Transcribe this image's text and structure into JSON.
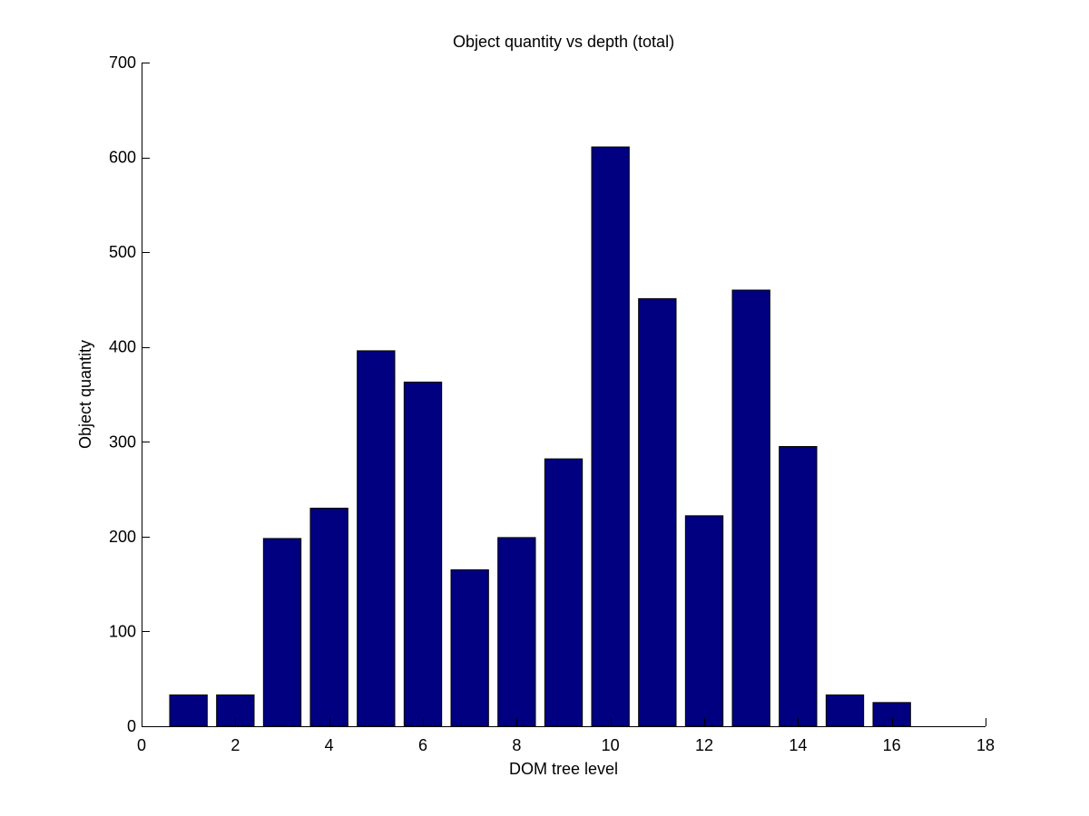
{
  "chart_data": {
    "type": "bar",
    "title": "Object quantity vs depth (total)",
    "xlabel": "DOM tree level",
    "ylabel": "Object quantity",
    "xlim": [
      0,
      18
    ],
    "ylim": [
      0,
      700
    ],
    "xticks": [
      0,
      2,
      4,
      6,
      8,
      10,
      12,
      14,
      16,
      18
    ],
    "yticks": [
      0,
      100,
      200,
      300,
      400,
      500,
      600,
      700
    ],
    "categories": [
      1,
      2,
      3,
      4,
      5,
      6,
      7,
      8,
      9,
      10,
      11,
      12,
      13,
      14,
      15,
      16
    ],
    "values": [
      33,
      33,
      198,
      230,
      396,
      363,
      165,
      199,
      282,
      611,
      451,
      222,
      460,
      295,
      33,
      25
    ],
    "bar_color": "#000080",
    "grid": false,
    "legend": false
  }
}
